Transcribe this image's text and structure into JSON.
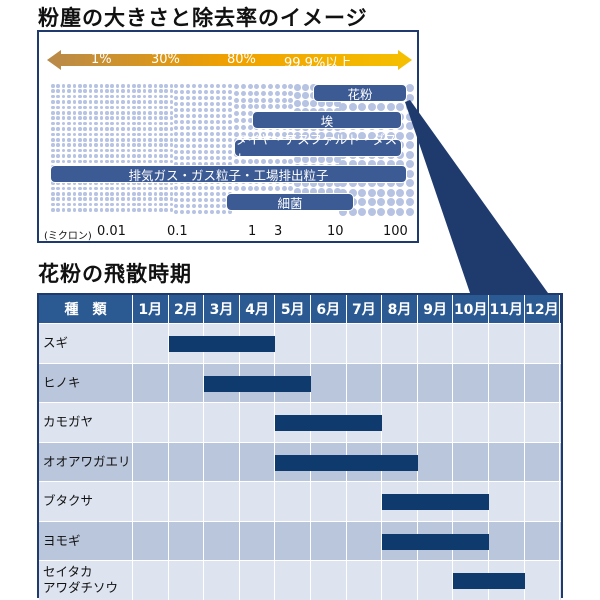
{
  "top_title": "粉塵の大きさと除去率のイメージ",
  "removal_rates": [
    "1%",
    "30%",
    "80%",
    "99.9%以上"
  ],
  "particles": [
    {
      "label": "花粉",
      "range": [
        10,
        100
      ]
    },
    {
      "label": "埃",
      "range": [
        1,
        100
      ]
    },
    {
      "label": "タイヤ・アスファルト・ダスト",
      "range": [
        0.8,
        100
      ]
    },
    {
      "label": "排気ガス・ガス粒子・工場排出粒子",
      "range": [
        0.005,
        100
      ]
    },
    {
      "label": "細菌",
      "range": [
        0.7,
        30
      ]
    }
  ],
  "axis": {
    "unit": "(ミクロン)",
    "ticks": [
      "0.01",
      "0.1",
      "1",
      "3",
      "10",
      "100"
    ]
  },
  "colors": {
    "navy": "#1f3b6e",
    "bar": "#3c5a93",
    "dots": "#b7c3e3",
    "arrow_start": "#b8894a",
    "arrow_end": "#f5b800"
  },
  "bottom_title": "花粉の飛散時期",
  "table": {
    "header": "種　類",
    "months": [
      "1月",
      "2月",
      "3月",
      "4月",
      "5月",
      "6月",
      "7月",
      "8月",
      "9月",
      "10月",
      "11月",
      "12月"
    ],
    "rows": [
      {
        "name": "スギ",
        "start_month": 2,
        "end_month": 4
      },
      {
        "name": "ヒノキ",
        "start_month": 3,
        "end_month": 5
      },
      {
        "name": "カモガヤ",
        "start_month": 5,
        "end_month": 7
      },
      {
        "name": "オオアワガエリ",
        "start_month": 5,
        "end_month": 8
      },
      {
        "name": "ブタクサ",
        "start_month": 8,
        "end_month": 10
      },
      {
        "name": "ヨモギ",
        "start_month": 8,
        "end_month": 10
      },
      {
        "name": "セイタカ\nアワダチソウ",
        "start_month": 10,
        "end_month": 11
      }
    ]
  }
}
